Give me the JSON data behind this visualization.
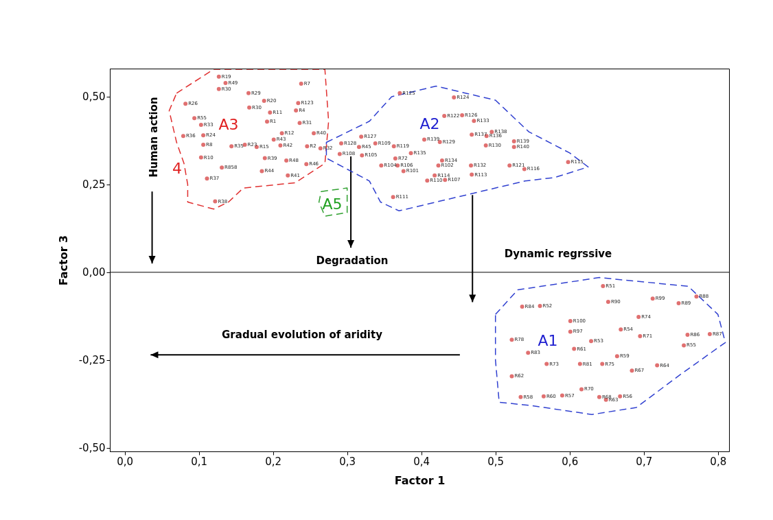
{
  "chart_data": {
    "type": "scatter",
    "xlabel": "Factor 1",
    "ylabel": "Factor 3",
    "xlim": [
      -0.02,
      0.815
    ],
    "ylim": [
      -0.51,
      0.58
    ],
    "xticks": [
      {
        "value": 0,
        "label": "0,0"
      },
      {
        "value": 0.1,
        "label": "0,1"
      },
      {
        "value": 0.2,
        "label": "0,2"
      },
      {
        "value": 0.3,
        "label": "0,3"
      },
      {
        "value": 0.4,
        "label": "0,4"
      },
      {
        "value": 0.5,
        "label": "0,5"
      },
      {
        "value": 0.6,
        "label": "0,6"
      },
      {
        "value": 0.7,
        "label": "0,7"
      },
      {
        "value": 0.8,
        "label": "0,8"
      }
    ],
    "yticks": [
      {
        "value": -0.5,
        "label": "-0,50"
      },
      {
        "value": -0.25,
        "label": "-0,25"
      },
      {
        "value": 0,
        "label": "0,00"
      },
      {
        "value": 0.25,
        "label": "0,25"
      },
      {
        "value": 0.5,
        "label": "0,50"
      }
    ],
    "grid": false,
    "legend": false,
    "marker": "circle",
    "ref_lines": [
      {
        "axis": "y",
        "value": 0,
        "color": "#000000"
      }
    ],
    "series": [
      {
        "color": "#e07070",
        "x": [
          0.127,
          0.136,
          0.127,
          0.167,
          0.238,
          0.082,
          0.188,
          0.234,
          0.168,
          0.196,
          0.231,
          0.192,
          0.236,
          0.094,
          0.103,
          0.106,
          0.212,
          0.255,
          0.079,
          0.106,
          0.144,
          0.162,
          0.178,
          0.201,
          0.21,
          0.246,
          0.264,
          0.103,
          0.189,
          0.218,
          0.245,
          0.131,
          0.185,
          0.22,
          0.111,
          0.122,
          0.371,
          0.444,
          0.431,
          0.455,
          0.471,
          0.495,
          0.488,
          0.468,
          0.319,
          0.404,
          0.425,
          0.292,
          0.316,
          0.338,
          0.363,
          0.29,
          0.32,
          0.386,
          0.365,
          0.487,
          0.428,
          0.346,
          0.368,
          0.423,
          0.376,
          0.418,
          0.408,
          0.432,
          0.467,
          0.468,
          0.362,
          0.525,
          0.525,
          0.519,
          0.539,
          0.598,
          0.645,
          0.652,
          0.712,
          0.747,
          0.771,
          0.536,
          0.56,
          0.693,
          0.601,
          0.601,
          0.669,
          0.695,
          0.759,
          0.789,
          0.754,
          0.522,
          0.629,
          0.606,
          0.544,
          0.664,
          0.569,
          0.614,
          0.644,
          0.718,
          0.684,
          0.522,
          0.616,
          0.534,
          0.565,
          0.59,
          0.64,
          0.649,
          0.668
        ],
        "values": [
          0.557,
          0.539,
          0.522,
          0.51,
          0.537,
          0.48,
          0.488,
          0.482,
          0.469,
          0.455,
          0.461,
          0.429,
          0.425,
          0.439,
          0.42,
          0.39,
          0.396,
          0.396,
          0.388,
          0.363,
          0.359,
          0.363,
          0.357,
          0.378,
          0.361,
          0.359,
          0.353,
          0.327,
          0.325,
          0.318,
          0.308,
          0.298,
          0.288,
          0.276,
          0.267,
          0.202,
          0.51,
          0.498,
          0.445,
          0.447,
          0.431,
          0.4,
          0.388,
          0.392,
          0.386,
          0.378,
          0.371,
          0.367,
          0.357,
          0.367,
          0.359,
          0.337,
          0.333,
          0.339,
          0.324,
          0.361,
          0.318,
          0.304,
          0.304,
          0.304,
          0.288,
          0.276,
          0.261,
          0.263,
          0.304,
          0.278,
          0.214,
          0.373,
          0.357,
          0.304,
          0.294,
          0.314,
          -0.039,
          -0.084,
          -0.075,
          -0.088,
          -0.069,
          -0.098,
          -0.096,
          -0.127,
          -0.139,
          -0.169,
          -0.163,
          -0.182,
          -0.178,
          -0.176,
          -0.208,
          -0.192,
          -0.196,
          -0.218,
          -0.229,
          -0.239,
          -0.261,
          -0.261,
          -0.261,
          -0.265,
          -0.28,
          -0.296,
          -0.333,
          -0.355,
          -0.353,
          -0.351,
          -0.355,
          -0.363,
          -0.353
        ]
      }
    ],
    "annotations": [
      {
        "text": "R19",
        "x": 0.127,
        "y": 0.557
      },
      {
        "text": "R49",
        "x": 0.136,
        "y": 0.539
      },
      {
        "text": "R30",
        "x": 0.127,
        "y": 0.522
      },
      {
        "text": "R29",
        "x": 0.167,
        "y": 0.51
      },
      {
        "text": "R7",
        "x": 0.238,
        "y": 0.537
      },
      {
        "text": "R26",
        "x": 0.082,
        "y": 0.48
      },
      {
        "text": "R20",
        "x": 0.188,
        "y": 0.488
      },
      {
        "text": "R123",
        "x": 0.234,
        "y": 0.482
      },
      {
        "text": "R30",
        "x": 0.168,
        "y": 0.469
      },
      {
        "text": "R11",
        "x": 0.196,
        "y": 0.455
      },
      {
        "text": "R4",
        "x": 0.231,
        "y": 0.461
      },
      {
        "text": "R1",
        "x": 0.192,
        "y": 0.429
      },
      {
        "text": "R31",
        "x": 0.236,
        "y": 0.425
      },
      {
        "text": "R55",
        "x": 0.094,
        "y": 0.439
      },
      {
        "text": "R33",
        "x": 0.103,
        "y": 0.42
      },
      {
        "text": "R24",
        "x": 0.106,
        "y": 0.39
      },
      {
        "text": "R12",
        "x": 0.212,
        "y": 0.396
      },
      {
        "text": "R40",
        "x": 0.255,
        "y": 0.396
      },
      {
        "text": "R36",
        "x": 0.079,
        "y": 0.388
      },
      {
        "text": "R8",
        "x": 0.106,
        "y": 0.363
      },
      {
        "text": "R35",
        "x": 0.144,
        "y": 0.359
      },
      {
        "text": "R23",
        "x": 0.162,
        "y": 0.363
      },
      {
        "text": "R15",
        "x": 0.178,
        "y": 0.357
      },
      {
        "text": "R43",
        "x": 0.201,
        "y": 0.378
      },
      {
        "text": "R42",
        "x": 0.21,
        "y": 0.361
      },
      {
        "text": "R2",
        "x": 0.246,
        "y": 0.359
      },
      {
        "text": "R32",
        "x": 0.264,
        "y": 0.353
      },
      {
        "text": "R10",
        "x": 0.103,
        "y": 0.327
      },
      {
        "text": "R39",
        "x": 0.189,
        "y": 0.325
      },
      {
        "text": "R48",
        "x": 0.218,
        "y": 0.318
      },
      {
        "text": "R46",
        "x": 0.245,
        "y": 0.308
      },
      {
        "text": "R858",
        "x": 0.131,
        "y": 0.298
      },
      {
        "text": "R44",
        "x": 0.185,
        "y": 0.288
      },
      {
        "text": "R41",
        "x": 0.22,
        "y": 0.276
      },
      {
        "text": "R37",
        "x": 0.111,
        "y": 0.267
      },
      {
        "text": "R38",
        "x": 0.122,
        "y": 0.202
      },
      {
        "text": "R125",
        "x": 0.371,
        "y": 0.51
      },
      {
        "text": "R124",
        "x": 0.444,
        "y": 0.498
      },
      {
        "text": "R122",
        "x": 0.431,
        "y": 0.445
      },
      {
        "text": "R126",
        "x": 0.455,
        "y": 0.447
      },
      {
        "text": "R133",
        "x": 0.471,
        "y": 0.431
      },
      {
        "text": "R138",
        "x": 0.495,
        "y": 0.4
      },
      {
        "text": "R136",
        "x": 0.488,
        "y": 0.388
      },
      {
        "text": "R137",
        "x": 0.468,
        "y": 0.392
      },
      {
        "text": "R127",
        "x": 0.319,
        "y": 0.386
      },
      {
        "text": "R139",
        "x": 0.404,
        "y": 0.378
      },
      {
        "text": "R129",
        "x": 0.425,
        "y": 0.371
      },
      {
        "text": "R128",
        "x": 0.292,
        "y": 0.367
      },
      {
        "text": "R45",
        "x": 0.316,
        "y": 0.357
      },
      {
        "text": "R109",
        "x": 0.338,
        "y": 0.367
      },
      {
        "text": "R119",
        "x": 0.363,
        "y": 0.359
      },
      {
        "text": "R108",
        "x": 0.29,
        "y": 0.337
      },
      {
        "text": "R105",
        "x": 0.32,
        "y": 0.333
      },
      {
        "text": "R135",
        "x": 0.386,
        "y": 0.339
      },
      {
        "text": "R72",
        "x": 0.365,
        "y": 0.324
      },
      {
        "text": "R130",
        "x": 0.487,
        "y": 0.361
      },
      {
        "text": "R134",
        "x": 0.428,
        "y": 0.318
      },
      {
        "text": "R104",
        "x": 0.346,
        "y": 0.304
      },
      {
        "text": "R106",
        "x": 0.368,
        "y": 0.304
      },
      {
        "text": "R102",
        "x": 0.423,
        "y": 0.304
      },
      {
        "text": "R101",
        "x": 0.376,
        "y": 0.288
      },
      {
        "text": "R114",
        "x": 0.418,
        "y": 0.276
      },
      {
        "text": "R110",
        "x": 0.408,
        "y": 0.261
      },
      {
        "text": "R107",
        "x": 0.432,
        "y": 0.263
      },
      {
        "text": "R132",
        "x": 0.467,
        "y": 0.304
      },
      {
        "text": "R113",
        "x": 0.468,
        "y": 0.278
      },
      {
        "text": "R111",
        "x": 0.362,
        "y": 0.214
      },
      {
        "text": "R139",
        "x": 0.525,
        "y": 0.373
      },
      {
        "text": "R140",
        "x": 0.525,
        "y": 0.357
      },
      {
        "text": "R121",
        "x": 0.519,
        "y": 0.304
      },
      {
        "text": "R116",
        "x": 0.539,
        "y": 0.294
      },
      {
        "text": "R115",
        "x": 0.598,
        "y": 0.314
      },
      {
        "text": "R51",
        "x": 0.645,
        "y": -0.039
      },
      {
        "text": "R90",
        "x": 0.652,
        "y": -0.084
      },
      {
        "text": "R99",
        "x": 0.712,
        "y": -0.075
      },
      {
        "text": "R89",
        "x": 0.747,
        "y": -0.088
      },
      {
        "text": "R88",
        "x": 0.771,
        "y": -0.069
      },
      {
        "text": "R84",
        "x": 0.536,
        "y": -0.098
      },
      {
        "text": "R52",
        "x": 0.56,
        "y": -0.096
      },
      {
        "text": "R74",
        "x": 0.693,
        "y": -0.127
      },
      {
        "text": "R100",
        "x": 0.601,
        "y": -0.139
      },
      {
        "text": "R97",
        "x": 0.601,
        "y": -0.169
      },
      {
        "text": "R54",
        "x": 0.669,
        "y": -0.163
      },
      {
        "text": "R71",
        "x": 0.695,
        "y": -0.182
      },
      {
        "text": "R86",
        "x": 0.759,
        "y": -0.178
      },
      {
        "text": "R87",
        "x": 0.789,
        "y": -0.176
      },
      {
        "text": "R55",
        "x": 0.754,
        "y": -0.208
      },
      {
        "text": "R78",
        "x": 0.522,
        "y": -0.192
      },
      {
        "text": "R53",
        "x": 0.629,
        "y": -0.196
      },
      {
        "text": "R61",
        "x": 0.606,
        "y": -0.218
      },
      {
        "text": "R83",
        "x": 0.544,
        "y": -0.229
      },
      {
        "text": "R59",
        "x": 0.664,
        "y": -0.239
      },
      {
        "text": "R73",
        "x": 0.569,
        "y": -0.261
      },
      {
        "text": "R81",
        "x": 0.614,
        "y": -0.261
      },
      {
        "text": "R75",
        "x": 0.644,
        "y": -0.261
      },
      {
        "text": "R64",
        "x": 0.718,
        "y": -0.265
      },
      {
        "text": "R67",
        "x": 0.684,
        "y": -0.28
      },
      {
        "text": "R62",
        "x": 0.522,
        "y": -0.296
      },
      {
        "text": "R70",
        "x": 0.616,
        "y": -0.333
      },
      {
        "text": "R58",
        "x": 0.534,
        "y": -0.355
      },
      {
        "text": "R60",
        "x": 0.565,
        "y": -0.353
      },
      {
        "text": "R57",
        "x": 0.59,
        "y": -0.351
      },
      {
        "text": "R68",
        "x": 0.64,
        "y": -0.355
      },
      {
        "text": "R63",
        "x": 0.649,
        "y": -0.363
      },
      {
        "text": "R56",
        "x": 0.668,
        "y": -0.353
      },
      "A3",
      "A2",
      "A1",
      "A5",
      "4",
      "Human action",
      "Degradation",
      "Dynamic regrssive",
      "Gradual evolution of aridity"
    ]
  }
}
